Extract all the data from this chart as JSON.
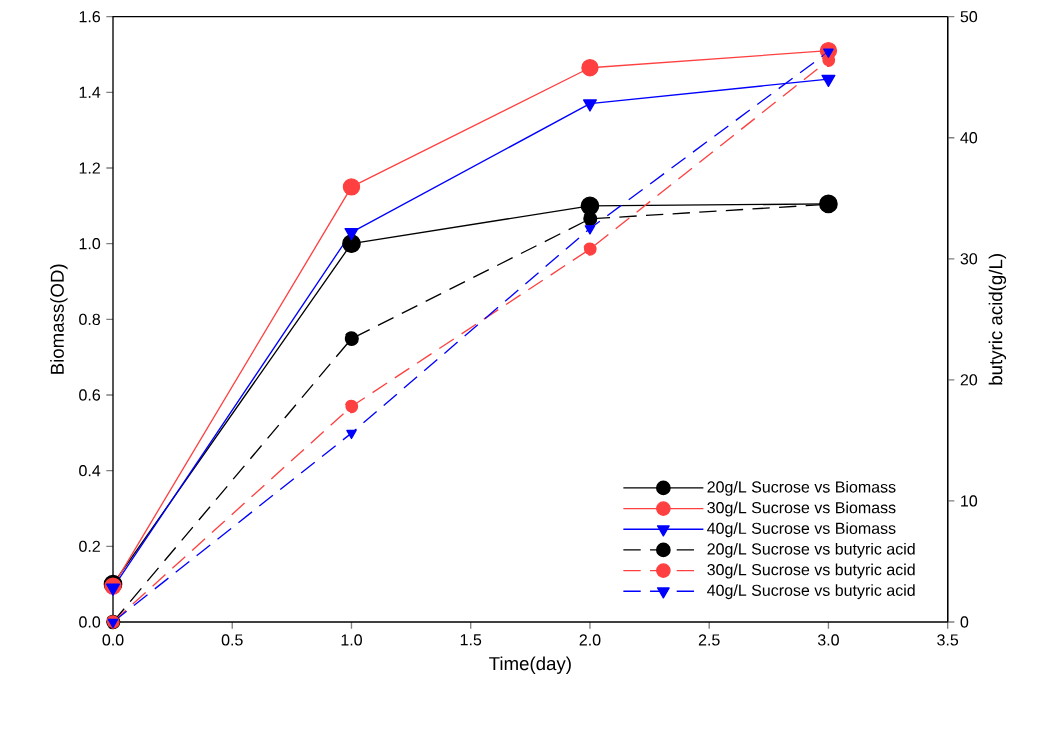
{
  "chart_data": {
    "type": "line",
    "xlabel": "Time(day)",
    "ylabel": "Biomass(OD)",
    "y2label": "butyric acid(g/L)",
    "x": [
      0,
      1,
      2,
      3
    ],
    "xlim": [
      0,
      3.5
    ],
    "xticks": [
      {
        "value": 0,
        "label": "0.0"
      },
      {
        "value": 0.5,
        "label": "0.5"
      },
      {
        "value": 1,
        "label": "1.0"
      },
      {
        "value": 1.5,
        "label": "1.5"
      },
      {
        "value": 2,
        "label": "2.0"
      },
      {
        "value": 2.5,
        "label": "2.5"
      },
      {
        "value": 3,
        "label": "3.0"
      },
      {
        "value": 3.5,
        "label": "3.5"
      }
    ],
    "ylim": [
      0,
      1.6
    ],
    "yticks": [
      {
        "value": 0,
        "label": "0.0"
      },
      {
        "value": 0.2,
        "label": "0.2"
      },
      {
        "value": 0.4,
        "label": "0.4"
      },
      {
        "value": 0.6,
        "label": "0.6"
      },
      {
        "value": 0.8,
        "label": "0.8"
      },
      {
        "value": 1.0,
        "label": "1.0"
      },
      {
        "value": 1.2,
        "label": "1.2"
      },
      {
        "value": 1.4,
        "label": "1.4"
      },
      {
        "value": 1.6,
        "label": "1.6"
      }
    ],
    "y2lim": [
      0,
      50
    ],
    "y2ticks": [
      0,
      10,
      20,
      30,
      40,
      50
    ],
    "legend": "bottom right",
    "series": [
      {
        "name": "20g/L Sucrose vs Biomass",
        "color": "#000000",
        "marker": "circle",
        "line_style": "solid",
        "values": [
          0.1,
          1.0,
          1.1,
          1.105
        ]
      },
      {
        "name": "30g/L Sucrose vs Biomass",
        "color": "#ff4040",
        "marker": "circle",
        "line_style": "solid",
        "values": [
          0.095,
          1.15,
          1.465,
          1.51
        ]
      },
      {
        "name": "40g/L Sucrose vs Biomass",
        "color": "#0000ff",
        "marker": "triangle",
        "line_style": "solid",
        "values": [
          0.09,
          1.03,
          1.37,
          1.435
        ]
      },
      {
        "name": "20g/L Sucrose vs butyric acid",
        "color": "#000000",
        "marker": "circle",
        "line_style": "dashed",
        "axis": "y2",
        "values": [
          0,
          23.4,
          33.3,
          34.5
        ]
      },
      {
        "name": "30g/L Sucrose vs butyric acid",
        "color": "#ff4040",
        "marker": "circle",
        "line_style": "dashed",
        "axis": "y2",
        "values": [
          0,
          17.8,
          30.8,
          46.4
        ]
      },
      {
        "name": "40g/L Sucrose vs butyric acid",
        "color": "#0000ff",
        "marker": "triangle",
        "line_style": "dashed",
        "axis": "y2",
        "values": [
          0,
          15.6,
          32.5,
          47.1
        ]
      }
    ]
  }
}
